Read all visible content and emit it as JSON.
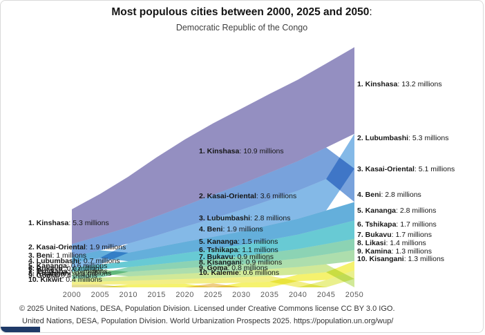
{
  "header": {
    "title": "Most populous cities between 2000, 2025 and 2050",
    "title_suffix": ":",
    "subtitle": "Democratic Republic of the Congo"
  },
  "footer": {
    "line1": "© 2025 United Nations, DESA, Population Division. Licensed under Creative Commons license CC BY 3.0 IGO.",
    "line2": "United Nations, DESA, Population Division. World Urbanization Prospects 2025. https://population.un.org/wup/"
  },
  "chart_data": {
    "type": "area",
    "variant": "ranked-stream",
    "title": "Most populous cities between 2000, 2025 and 2050: Democratic Republic of the Congo",
    "unit": "millions",
    "grid": false,
    "legend_position": "none",
    "x_ticks": [
      2000,
      2005,
      2010,
      2015,
      2020,
      2025,
      2030,
      2035,
      2040,
      2045,
      2050
    ],
    "series": [
      {
        "name": "Kinshasa",
        "color": "#8b86bc",
        "values": [
          5.3,
          6.4,
          7.7,
          9.0,
          10.1,
          10.9,
          11.5,
          12.0,
          12.4,
          12.8,
          13.2
        ]
      },
      {
        "name": "Kasai-Oriental",
        "color": "#6d9ad9",
        "values": [
          1.9,
          2.2,
          2.5,
          2.9,
          3.2,
          3.6,
          3.9,
          4.2,
          4.5,
          4.8,
          5.1
        ]
      },
      {
        "name": "Lubumbashi",
        "color": "#7ab3e5",
        "values": [
          0.7,
          1.0,
          1.4,
          1.8,
          2.3,
          2.8,
          3.3,
          3.8,
          4.3,
          4.8,
          5.3
        ]
      },
      {
        "name": "Beni",
        "color": "#57a8d8",
        "values": [
          1.0,
          1.15,
          1.3,
          1.5,
          1.7,
          1.9,
          2.1,
          2.25,
          2.4,
          2.6,
          2.8
        ]
      },
      {
        "name": "Kananga",
        "color": "#5bc6d0",
        "values": [
          0.6,
          0.75,
          0.9,
          1.1,
          1.3,
          1.5,
          1.7,
          1.95,
          2.2,
          2.5,
          2.8
        ]
      },
      {
        "name": "Tshikapa",
        "color": "#82cfae",
        "values": [
          0.5,
          0.6,
          0.7,
          0.85,
          1.0,
          1.1,
          1.2,
          1.32,
          1.45,
          1.58,
          1.7
        ]
      },
      {
        "name": "Bukavu",
        "color": "#a6dba6",
        "values": [
          0.6,
          0.65,
          0.7,
          0.78,
          0.85,
          0.9,
          1.0,
          1.15,
          1.3,
          1.5,
          1.7
        ]
      },
      {
        "name": "Likasi",
        "color": "#f4f162",
        "values": [
          0.35,
          0.4,
          0.45,
          0.5,
          0.55,
          0.58,
          0.7,
          0.85,
          1.0,
          1.2,
          1.4
        ]
      },
      {
        "name": "Kamina",
        "color": "#e8ef83",
        "values": [
          0.2,
          0.25,
          0.3,
          0.38,
          0.45,
          0.5,
          0.62,
          0.75,
          0.9,
          1.1,
          1.3
        ]
      },
      {
        "name": "Kisangani",
        "color": "#cde78f",
        "values": [
          0.5,
          0.58,
          0.66,
          0.74,
          0.82,
          0.9,
          0.98,
          1.06,
          1.14,
          1.22,
          1.3
        ]
      },
      {
        "name": "Goma",
        "color": "#f2ee7d",
        "values": [
          0.4,
          0.48,
          0.56,
          0.64,
          0.72,
          0.8,
          0.85,
          0.9,
          0.95,
          1.0,
          1.05
        ]
      },
      {
        "name": "Kalemie",
        "color": "#eec979",
        "values": [
          0.3,
          0.36,
          0.42,
          0.48,
          0.54,
          0.6,
          0.65,
          0.7,
          0.75,
          0.8,
          0.85
        ]
      },
      {
        "name": "Kikwit",
        "color": "#e2d98b",
        "values": [
          0.4,
          0.43,
          0.45,
          0.48,
          0.5,
          0.52,
          0.55,
          0.58,
          0.6,
          0.63,
          0.66
        ]
      }
    ],
    "rank_labels": {
      "y2000": [
        {
          "rank": 1,
          "city": "Kinshasa",
          "value": "5.3"
        },
        {
          "rank": 2,
          "city": "Kasai-Oriental",
          "value": "1.9"
        },
        {
          "rank": 3,
          "city": "Beni",
          "value": "1"
        },
        {
          "rank": 4,
          "city": "Lubumbashi",
          "value": "0.7"
        },
        {
          "rank": 5,
          "city": "Kananga",
          "value": "0.6"
        },
        {
          "rank": 6,
          "city": "Bukavu",
          "value": "0.6"
        },
        {
          "rank": 7,
          "city": "Tshikapa",
          "value": "0.5"
        },
        {
          "rank": 8,
          "city": "Kisangani",
          "value": "0.5"
        },
        {
          "rank": 9,
          "city": "Goma",
          "value": "0.4"
        },
        {
          "rank": 10,
          "city": "Kikwit",
          "value": "0.4"
        }
      ],
      "y2025": [
        {
          "rank": 1,
          "city": "Kinshasa",
          "value": "10.9"
        },
        {
          "rank": 2,
          "city": "Kasai-Oriental",
          "value": "3.6"
        },
        {
          "rank": 3,
          "city": "Lubumbashi",
          "value": "2.8"
        },
        {
          "rank": 4,
          "city": "Beni",
          "value": "1.9"
        },
        {
          "rank": 5,
          "city": "Kananga",
          "value": "1.5"
        },
        {
          "rank": 6,
          "city": "Tshikapa",
          "value": "1.1"
        },
        {
          "rank": 7,
          "city": "Bukavu",
          "value": "0.9"
        },
        {
          "rank": 8,
          "city": "Kisangani",
          "value": "0.9"
        },
        {
          "rank": 9,
          "city": "Goma",
          "value": "0.8"
        },
        {
          "rank": 10,
          "city": "Kalemie",
          "value": "0.6"
        }
      ],
      "y2050": [
        {
          "rank": 1,
          "city": "Kinshasa",
          "value": "13.2"
        },
        {
          "rank": 2,
          "city": "Lubumbashi",
          "value": "5.3"
        },
        {
          "rank": 3,
          "city": "Kasai-Oriental",
          "value": "5.1"
        },
        {
          "rank": 4,
          "city": "Beni",
          "value": "2.8"
        },
        {
          "rank": 5,
          "city": "Kananga",
          "value": "2.8"
        },
        {
          "rank": 6,
          "city": "Tshikapa",
          "value": "1.7"
        },
        {
          "rank": 7,
          "city": "Bukavu",
          "value": "1.7"
        },
        {
          "rank": 8,
          "city": "Likasi",
          "value": "1.4"
        },
        {
          "rank": 9,
          "city": "Kamina",
          "value": "1.3"
        },
        {
          "rank": 10,
          "city": "Kisangani",
          "value": "1.3"
        }
      ]
    }
  }
}
